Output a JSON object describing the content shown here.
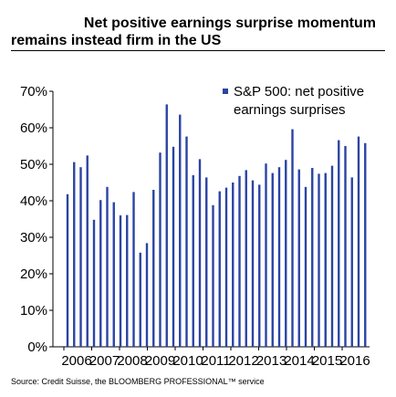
{
  "header": {
    "title_line1": "Net positive earnings surprise momentum",
    "title_line2": "remains instead firm in the US"
  },
  "footer": {
    "source": "Source: Credit Suisse, the BLOOMBERG PROFESSIONAL™ service"
  },
  "colors": {
    "bar": "#2a44a4",
    "axis": "#000000"
  },
  "chart_data": {
    "type": "bar",
    "series": [
      {
        "name": "S&P 500: net positive earnings surprises",
        "legend_lines": [
          "S&P 500: net positive",
          "earnings surprises"
        ],
        "values": [
          41.8,
          50.6,
          49.2,
          52.4,
          34.8,
          40.2,
          43.8,
          39.6,
          36.0,
          36.1,
          42.4,
          25.8,
          28.4,
          43.0,
          53.2,
          66.4,
          54.8,
          63.6,
          57.6,
          47.0,
          51.4,
          46.4,
          38.8,
          42.6,
          43.6,
          45.0,
          46.8,
          48.4,
          45.6,
          44.4,
          50.2,
          47.6,
          49.2,
          51.2,
          59.6,
          48.6,
          43.8,
          49.0,
          47.4,
          47.6,
          49.6,
          56.6,
          55.0,
          46.4,
          57.6,
          55.8
        ]
      }
    ],
    "x_tick_labels": [
      "2006",
      "2007",
      "2008",
      "2009",
      "2010",
      "2011",
      "2012",
      "2013",
      "2014",
      "2015",
      "2016"
    ],
    "y_tick_labels": [
      "0%",
      "10%",
      "20%",
      "30%",
      "40%",
      "50%",
      "60%",
      "70%"
    ],
    "ylim": [
      0,
      70
    ],
    "y_unit": "%",
    "grid": false,
    "legend_position": "top-right"
  }
}
